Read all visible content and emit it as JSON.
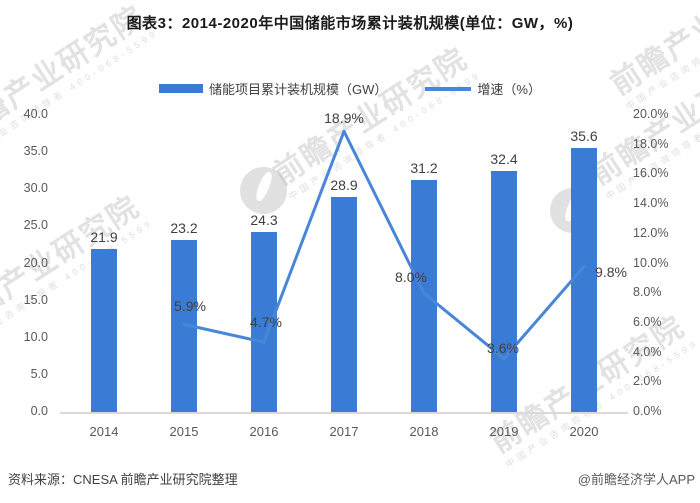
{
  "title": "图表3：2014-2020年中国储能市场累计装机规模(单位：GW，%)",
  "legend": {
    "bar_label": "储能项目累计装机规模（GW）",
    "line_label": "增速（%）"
  },
  "footer": {
    "source": "资料来源：CNESA 前瞻产业研究院整理",
    "credit": "@前瞻经济学人APP"
  },
  "watermark": {
    "text": "前瞻产业研究院",
    "subtext": "中国产业咨询领导者 400-068-5599"
  },
  "colors": {
    "bar": "#3a7bd5",
    "line": "#4a86d8",
    "axis_line": "#d9d9d9",
    "data_label": "#404040",
    "tick_label": "#595959"
  },
  "chart_data": {
    "type": "bar",
    "subtype": "bar-line-combo",
    "title": "图表3：2014-2020年中国储能市场累计装机规模(单位：GW，%)",
    "categories": [
      "2014",
      "2015",
      "2016",
      "2017",
      "2018",
      "2019",
      "2020"
    ],
    "series": [
      {
        "name": "储能项目累计装机规模（GW）",
        "type": "bar",
        "axis": "left",
        "values": [
          21.9,
          23.2,
          24.3,
          28.9,
          31.2,
          32.4,
          35.6
        ]
      },
      {
        "name": "增速（%）",
        "type": "line",
        "axis": "right",
        "values": [
          null,
          5.9,
          4.7,
          18.9,
          8.0,
          3.6,
          9.8
        ]
      }
    ],
    "left_axis": {
      "min": 0,
      "max": 40,
      "step": 5,
      "tick_labels": [
        "0.0",
        "5.0",
        "10.0",
        "15.0",
        "20.0",
        "25.0",
        "30.0",
        "35.0",
        "40.0"
      ]
    },
    "right_axis": {
      "min": 0,
      "max": 20,
      "step": 2,
      "tick_labels": [
        "0.0%",
        "2.0%",
        "4.0%",
        "6.0%",
        "8.0%",
        "10.0%",
        "12.0%",
        "14.0%",
        "16.0%",
        "18.0%",
        "20.0%"
      ]
    },
    "grid": false,
    "legend_position": "top"
  }
}
